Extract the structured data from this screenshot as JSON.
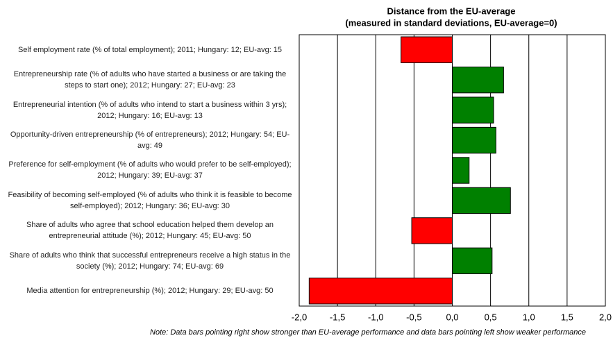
{
  "chart_data": {
    "type": "barh",
    "title": "Distance from the EU-average",
    "subtitle": "(measured in standard deviations, EU-average=0)",
    "categories": [
      "Self employment rate (% of total employment); 2011; Hungary: 12; EU-avg: 15",
      "Entrepreneurship rate (% of adults who have started a business or are taking the steps to start one); 2012; Hungary: 27; EU-avg: 23",
      "Entrepreneurial intention (% of adults who intend to start a business within 3 yrs); 2012; Hungary: 16; EU-avg: 13",
      "Opportunity-driven entrepreneurship (% of entrepreneurs); 2012; Hungary: 54; EU-avg: 49",
      "Preference for self-employment (% of adults who would prefer to be self-employed); 2012; Hungary: 39; EU-avg: 37",
      "Feasibility of becoming self-employed (% of adults who think it is feasible to become self-employed); 2012; Hungary: 36; EU-avg: 30",
      "Share of adults who agree that school education helped them develop an entrepreneurial attitude (%); 2012; Hungary: 45; EU-avg: 50",
      "Share of adults who think that successful entrepreneurs receive a high status in the society (%); 2012; Hungary: 74; EU-avg: 69",
      "Media attention for entrepreneurship (%); 2012; Hungary: 29; EU-avg: 50"
    ],
    "values": [
      -0.67,
      0.67,
      0.54,
      0.57,
      0.22,
      0.76,
      -0.53,
      0.52,
      -1.87
    ],
    "positive_color": "#008000",
    "negative_color": "#ff0000",
    "xlim": [
      -2,
      2
    ],
    "xticks": [
      {
        "value": -2,
        "label": "-2,0"
      },
      {
        "value": -1.5,
        "label": "-1,5"
      },
      {
        "value": -1,
        "label": "-1,0"
      },
      {
        "value": -0.5,
        "label": "-0,5"
      },
      {
        "value": 0,
        "label": "0,0"
      },
      {
        "value": 0.5,
        "label": "0,5"
      },
      {
        "value": 1,
        "label": "1,0"
      },
      {
        "value": 1.5,
        "label": "1,5"
      },
      {
        "value": 2,
        "label": "2,0"
      }
    ],
    "grid": true,
    "note": "Note: Data bars pointing right show stronger than EU-average performance and data bars pointing left show weaker performance"
  }
}
